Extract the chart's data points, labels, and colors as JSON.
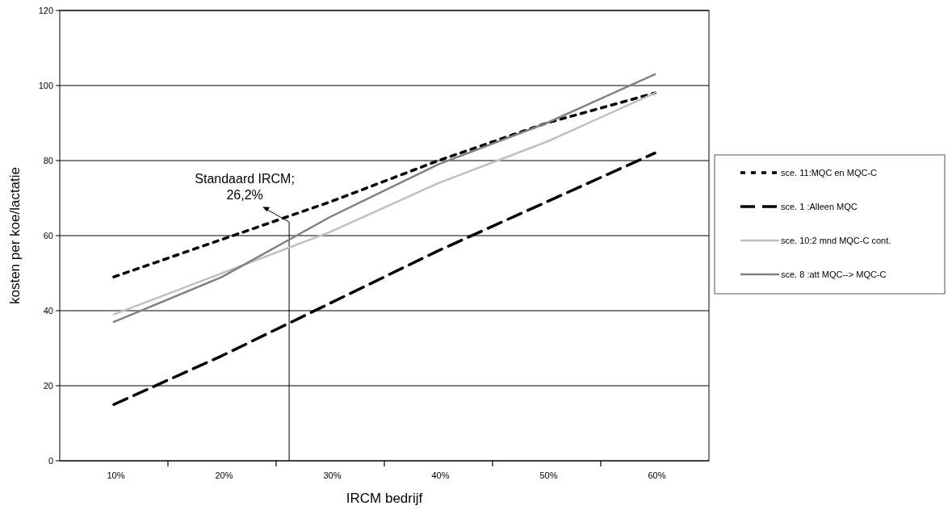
{
  "chart_data": {
    "type": "line",
    "xlabel": "IRCM bedrijf",
    "ylabel": "kosten per koe/lactatie",
    "x": [
      10,
      20,
      30,
      40,
      50,
      60
    ],
    "xlim": [
      5,
      65
    ],
    "xticks": [
      {
        "value": 10,
        "label": "10%"
      },
      {
        "value": 20,
        "label": "20%"
      },
      {
        "value": 30,
        "label": "30%"
      },
      {
        "value": 40,
        "label": "40%"
      },
      {
        "value": 50,
        "label": "50%"
      },
      {
        "value": 60,
        "label": "60%"
      }
    ],
    "ylim": [
      0,
      120
    ],
    "yticks": [
      0,
      20,
      40,
      60,
      80,
      100,
      120
    ],
    "grid": "y",
    "legend": "right",
    "series": [
      {
        "name": "sce. 11:MQC en MQC-C",
        "color": "#000000",
        "line_style": "dotted",
        "values": [
          49,
          59,
          69,
          80,
          90,
          98
        ]
      },
      {
        "name": "sce. 1  :Alleen MQC",
        "color": "#000000",
        "line_style": "dashed",
        "values": [
          15,
          28,
          42,
          56,
          69,
          82
        ]
      },
      {
        "name": "sce. 10:2 mnd MQC-C cont.",
        "color": "#c0c0c0",
        "line_style": "solid",
        "values": [
          39,
          50,
          61,
          74,
          85,
          98
        ]
      },
      {
        "name": "sce. 8  :att MQC--> MQC-C",
        "color": "#808080",
        "line_style": "solid",
        "values": [
          37,
          49,
          65,
          79,
          90,
          103
        ]
      }
    ],
    "ref_lines": [
      {
        "axis": "x",
        "value": 26.2,
        "label": "Standaard IRCM;\n26,2%",
        "color": "#000000"
      }
    ]
  }
}
